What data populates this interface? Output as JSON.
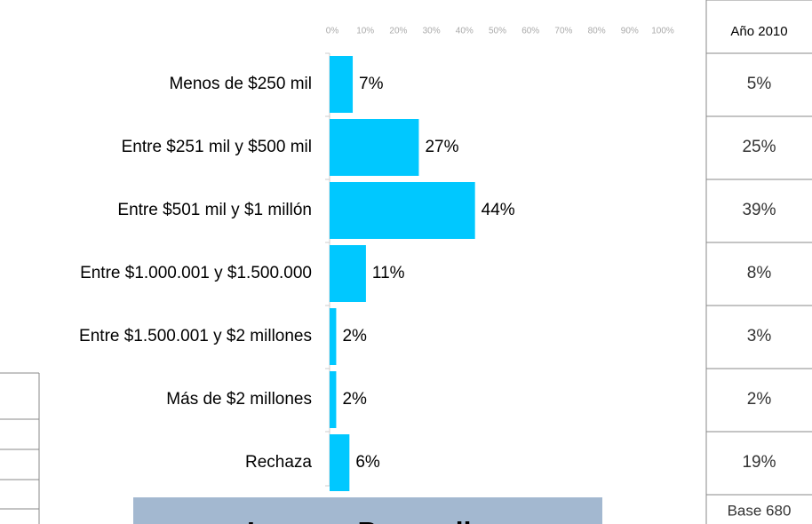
{
  "chart_data": {
    "type": "bar",
    "orientation": "horizontal",
    "categories": [
      "Menos de $250 mil",
      "Entre $251 mil y $500 mil",
      "Entre $501 mil y $1 millón",
      "Entre $1.000.001 y $1.500.000",
      "Entre $1.500.001 y $2 millones",
      "Más de $2 millones",
      "Rechaza"
    ],
    "values": [
      7,
      27,
      44,
      11,
      2,
      2,
      6
    ],
    "value_labels": [
      "7%",
      "27%",
      "44%",
      "11%",
      "2%",
      "2%",
      "6%"
    ],
    "color": "#00c8ff",
    "xlim": [
      0,
      100
    ],
    "xticks": [
      {
        "value": 0,
        "label": "0%"
      },
      {
        "value": 10,
        "label": "10%"
      },
      {
        "value": 20,
        "label": "20%"
      },
      {
        "value": 30,
        "label": "30%"
      },
      {
        "value": 40,
        "label": "40%"
      },
      {
        "value": 50,
        "label": "50%"
      },
      {
        "value": 60,
        "label": "60%"
      },
      {
        "value": 70,
        "label": "70%"
      },
      {
        "value": 80,
        "label": "80%"
      },
      {
        "value": 90,
        "label": "90%"
      },
      {
        "value": 100,
        "label": "100%"
      }
    ]
  },
  "table": {
    "header": "Año 2010",
    "rows": [
      "5%",
      "25%",
      "39%",
      "8%",
      "3%",
      "2%",
      "19%"
    ],
    "footer": "Base 680"
  },
  "banner": {
    "title": "Ingreso Promedio"
  }
}
